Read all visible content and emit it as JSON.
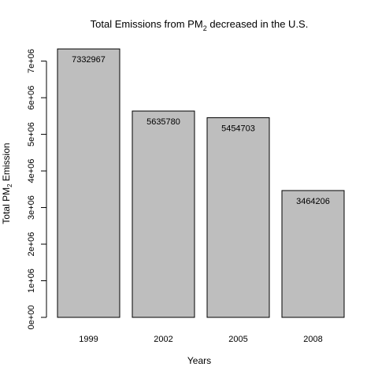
{
  "chart_data": {
    "type": "bar",
    "title_main": "Total Emissions from PM",
    "title_sub": "2",
    "title_rest": " decreased in the U.S.",
    "xlabel": "Years",
    "ylabel_main": "Total  PM",
    "ylabel_sub": "2",
    "ylabel_rest": "  Emission",
    "categories": [
      "1999",
      "2002",
      "2005",
      "2008"
    ],
    "values": [
      7332967,
      5635780,
      5454703,
      3464206
    ],
    "data_labels": [
      "7332967",
      "5635780",
      "5454703",
      "3464206"
    ],
    "ylim": [
      0,
      7400000
    ],
    "yticks": [
      0,
      1000000,
      2000000,
      3000000,
      4000000,
      5000000,
      6000000,
      7000000
    ],
    "ytick_labels": [
      "0e+00",
      "1e+06",
      "2e+06",
      "3e+06",
      "4e+06",
      "5e+06",
      "6e+06",
      "7e+06"
    ],
    "bar_color": "#bebebe",
    "grid": false,
    "legend": "none"
  }
}
